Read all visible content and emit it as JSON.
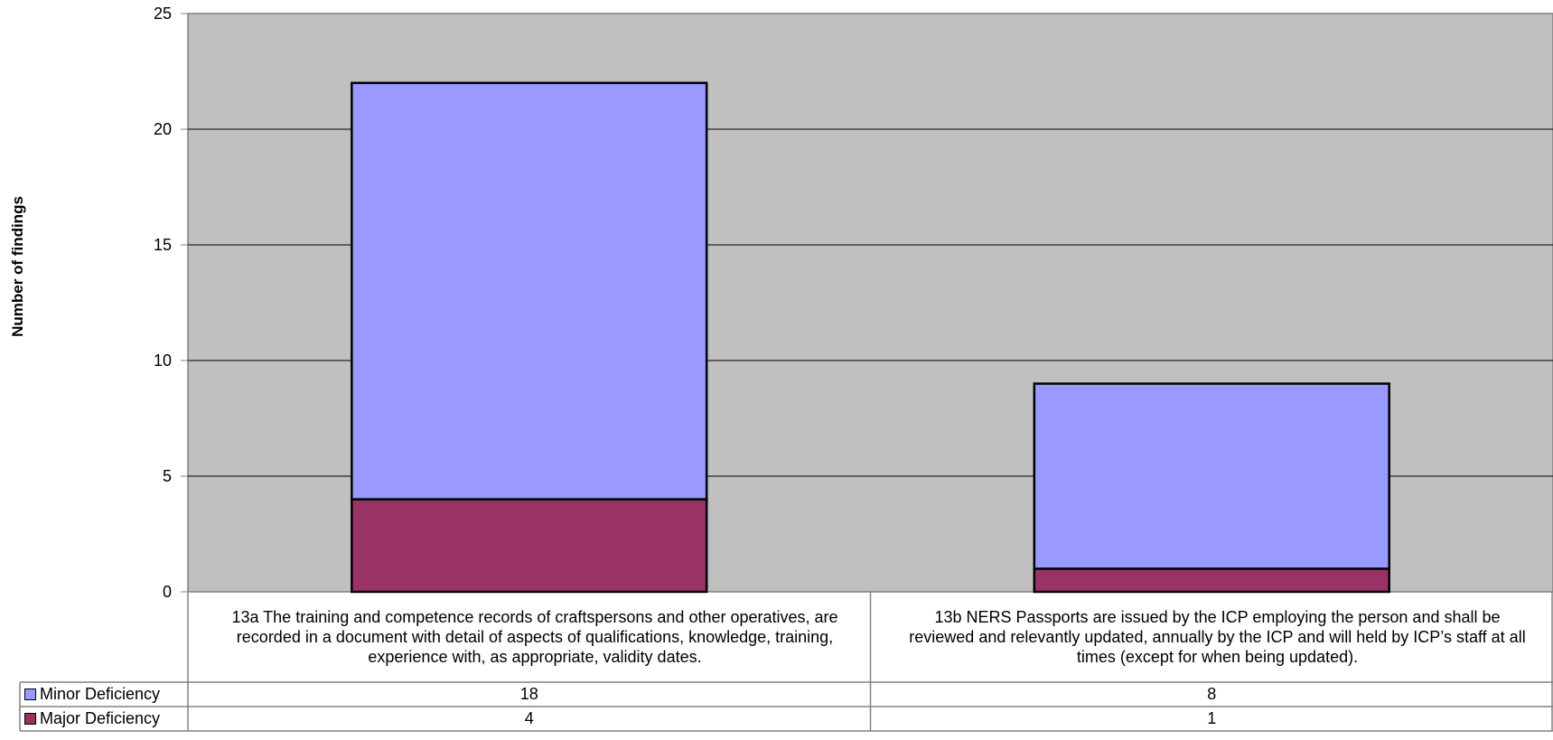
{
  "chart_data": {
    "type": "bar",
    "stacked": true,
    "ylabel": "Number of findings",
    "xlabel": "",
    "ylim": [
      0,
      25
    ],
    "yticks": [
      0,
      5,
      10,
      15,
      20,
      25
    ],
    "grid": true,
    "data_table": true,
    "categories": [
      "13a The training and competence records of craftspersons and other operatives, are recorded in a document with detail of aspects of qualifications, knowledge, training, experience with, as appropriate, validity dates.",
      "13b NERS Passports are issued by the ICP employing the person and shall be reviewed and relevantly updated, annually by the ICP and will held by ICP’s staff at all times (except for when being updated)."
    ],
    "series": [
      {
        "name": "Minor Deficiency",
        "color": "#9999ff",
        "values": [
          18,
          8
        ]
      },
      {
        "name": "Major Deficiency",
        "color": "#993366",
        "values": [
          4,
          1
        ]
      }
    ],
    "colors": {
      "plot_background": "#c0c0c0",
      "gridline": "#000000"
    }
  }
}
